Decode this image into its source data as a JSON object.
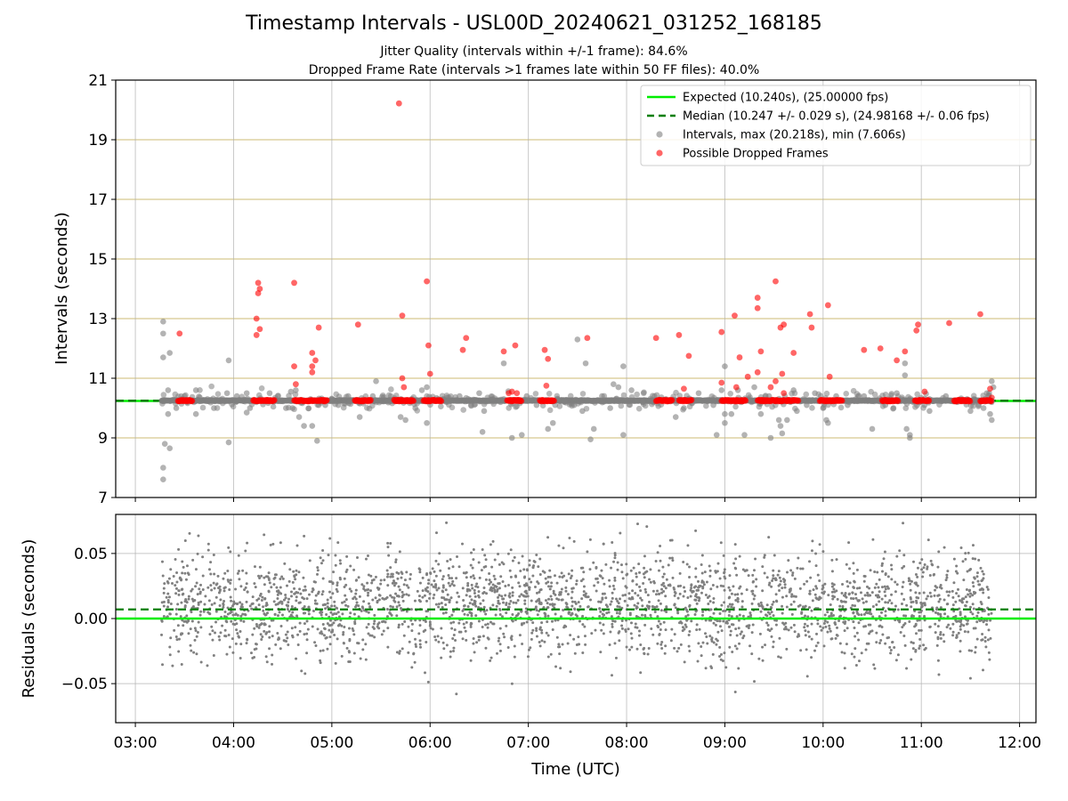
{
  "header": {
    "title": "Timestamp Intervals - USL00D_20240621_031252_168185",
    "subtitle1": "Jitter Quality (intervals within +/-1 frame): 84.6%",
    "subtitle2": "Dropped Frame Rate (intervals >1 frames late within 50 FF files): 40.0%"
  },
  "colors": {
    "expected": "#00ee00",
    "median": "#007f00",
    "intervals": "#808080",
    "dropped": "#ff0000",
    "grid_h_top": "#c8b464",
    "grid": "#b0b0b0"
  },
  "chart_data": [
    {
      "type": "scatter",
      "ylabel": "Intervals (seconds)",
      "xlabel": "",
      "xlim": [
        "02:48",
        "12:10"
      ],
      "ylim": [
        7,
        21
      ],
      "yticks": [
        7,
        9,
        11,
        13,
        15,
        17,
        19,
        21
      ],
      "xticks": [
        "03:00",
        "04:00",
        "05:00",
        "06:00",
        "07:00",
        "08:00",
        "09:00",
        "10:00",
        "11:00",
        "12:00"
      ],
      "grid": true,
      "legend_position": "top-right",
      "legend": [
        "Expected (10.240s), (25.00000 fps)",
        "Median (10.247 +/- 0.029 s), (24.98168 +/- 0.06 fps)",
        "Intervals, max (20.218s), min (7.606s)",
        "Possible Dropped Frames"
      ],
      "expected_line": 10.24,
      "median_line": 10.247,
      "data_time_range": [
        "03:16",
        "11:43"
      ],
      "baseline_interval": 10.25,
      "series": [
        {
          "name": "Intervals, max (20.218s), min (7.606s)",
          "points": [
            [
              "03:17",
              12.9
            ],
            [
              "03:17",
              12.5
            ],
            [
              "03:17",
              11.7
            ],
            [
              "03:21",
              11.85
            ],
            [
              "03:18",
              8.8
            ],
            [
              "03:17",
              8.0
            ],
            [
              "03:17",
              7.606
            ],
            [
              "03:21",
              8.65
            ],
            [
              "03:20",
              9.8
            ],
            [
              "03:20",
              10.6
            ],
            [
              "03:25",
              10.0
            ],
            [
              "03:30",
              10.4
            ],
            [
              "03:37",
              10.6
            ],
            [
              "03:37",
              9.8
            ],
            [
              "03:44",
              10.3
            ],
            [
              "03:48",
              10.0
            ],
            [
              "03:57",
              11.6
            ],
            [
              "03:57",
              8.85
            ],
            [
              "03:56",
              10.5
            ],
            [
              "04:02",
              10.4
            ],
            [
              "04:08",
              10.5
            ],
            [
              "04:08",
              9.85
            ],
            [
              "04:10",
              10.0
            ],
            [
              "04:22",
              10.5
            ],
            [
              "04:27",
              10.4
            ],
            [
              "04:32",
              10.0
            ],
            [
              "04:35",
              10.55
            ],
            [
              "04:36",
              10.0
            ],
            [
              "04:38",
              10.6
            ],
            [
              "04:40",
              9.7
            ],
            [
              "04:42",
              10.2
            ],
            [
              "04:43",
              9.4
            ],
            [
              "04:47",
              10.3
            ],
            [
              "04:48",
              9.4
            ],
            [
              "04:51",
              8.9
            ],
            [
              "04:52",
              10.1
            ],
            [
              "04:56",
              10.1
            ],
            [
              "05:00",
              10.3
            ],
            [
              "05:04",
              10.1
            ],
            [
              "05:10",
              10.4
            ],
            [
              "05:17",
              9.7
            ],
            [
              "05:25",
              10.4
            ],
            [
              "05:27",
              10.9
            ],
            [
              "05:36",
              10.4
            ],
            [
              "05:42",
              9.7
            ],
            [
              "05:45",
              9.6
            ],
            [
              "05:51",
              10.0
            ],
            [
              "05:55",
              10.6
            ],
            [
              "05:58",
              9.5
            ],
            [
              "05:58",
              10.7
            ],
            [
              "06:05",
              10.3
            ],
            [
              "06:10",
              10.2
            ],
            [
              "06:18",
              10.4
            ],
            [
              "06:25",
              10.1
            ],
            [
              "06:30",
              10.5
            ],
            [
              "06:32",
              9.2
            ],
            [
              "06:33",
              9.9
            ],
            [
              "06:38",
              10.3
            ],
            [
              "06:43",
              10.2
            ],
            [
              "06:45",
              10.3
            ],
            [
              "06:45",
              11.5
            ],
            [
              "06:50",
              9.0
            ],
            [
              "06:56",
              9.1
            ],
            [
              "06:59",
              10.4
            ],
            [
              "07:05",
              10.1
            ],
            [
              "07:12",
              9.3
            ],
            [
              "07:15",
              9.5
            ],
            [
              "07:18",
              10.3
            ],
            [
              "07:22",
              10.2
            ],
            [
              "07:28",
              10.1
            ],
            [
              "07:30",
              12.3
            ],
            [
              "07:33",
              9.9
            ],
            [
              "07:35",
              11.5
            ],
            [
              "07:38",
              8.95
            ],
            [
              "07:40",
              9.3
            ],
            [
              "07:45",
              10.4
            ],
            [
              "07:50",
              10.0
            ],
            [
              "07:52",
              10.8
            ],
            [
              "07:55",
              10.7
            ],
            [
              "07:58",
              11.4
            ],
            [
              "07:58",
              9.1
            ],
            [
              "08:03",
              10.6
            ],
            [
              "08:10",
              10.2
            ],
            [
              "08:17",
              10.4
            ],
            [
              "08:24",
              10.3
            ],
            [
              "08:30",
              9.7
            ],
            [
              "08:35",
              10.0
            ],
            [
              "08:38",
              10.3
            ],
            [
              "08:44",
              10.5
            ],
            [
              "08:53",
              10.1
            ],
            [
              "08:55",
              9.1
            ],
            [
              "08:58",
              10.6
            ],
            [
              "09:00",
              11.4
            ],
            [
              "09:00",
              9.8
            ],
            [
              "09:00",
              9.5
            ],
            [
              "09:04",
              9.8
            ],
            [
              "09:08",
              10.6
            ],
            [
              "09:12",
              9.1
            ],
            [
              "09:15",
              10.3
            ],
            [
              "09:18",
              10.7
            ],
            [
              "09:22",
              9.8
            ],
            [
              "09:27",
              10.4
            ],
            [
              "09:28",
              9.0
            ],
            [
              "09:33",
              9.6
            ],
            [
              "09:34",
              9.4
            ],
            [
              "09:35",
              9.15
            ],
            [
              "09:38",
              9.6
            ],
            [
              "09:40",
              10.2
            ],
            [
              "09:42",
              10.6
            ],
            [
              "09:44",
              9.9
            ],
            [
              "09:48",
              10.3
            ],
            [
              "09:50",
              10.1
            ],
            [
              "09:55",
              10.5
            ],
            [
              "10:00",
              10.0
            ],
            [
              "10:02",
              9.6
            ],
            [
              "10:03",
              9.5
            ],
            [
              "10:08",
              10.4
            ],
            [
              "10:15",
              10.1
            ],
            [
              "10:20",
              10.3
            ],
            [
              "10:25",
              10.4
            ],
            [
              "10:30",
              9.3
            ],
            [
              "10:38",
              10.1
            ],
            [
              "10:43",
              10.0
            ],
            [
              "10:45",
              10.5
            ],
            [
              "10:48",
              10.3
            ],
            [
              "10:50",
              11.5
            ],
            [
              "10:50",
              11.1
            ],
            [
              "10:51",
              9.3
            ],
            [
              "10:53",
              9.1
            ],
            [
              "10:53",
              9.0
            ],
            [
              "10:55",
              10.2
            ],
            [
              "11:02",
              10.1
            ],
            [
              "11:05",
              10.3
            ],
            [
              "11:05",
              9.9
            ],
            [
              "11:15",
              10.4
            ],
            [
              "11:22",
              10.2
            ],
            [
              "11:28",
              10.3
            ],
            [
              "11:30",
              9.9
            ],
            [
              "11:35",
              10.1
            ],
            [
              "11:38",
              10.0
            ],
            [
              "11:40",
              10.5
            ],
            [
              "11:43",
              10.9
            ],
            [
              "11:43",
              10.2
            ],
            [
              "11:43",
              9.6
            ],
            [
              "11:42",
              9.8
            ],
            [
              "11:44",
              10.7
            ],
            [
              "11:41",
              10.4
            ]
          ]
        },
        {
          "name": "Possible Dropped Frames",
          "points": [
            [
              "05:41",
              20.218
            ],
            [
              "04:15",
              14.2
            ],
            [
              "04:15",
              13.85
            ],
            [
              "04:16",
              14.0
            ],
            [
              "04:14",
              13.0
            ],
            [
              "04:14",
              12.45
            ],
            [
              "04:16",
              12.65
            ],
            [
              "04:37",
              14.2
            ],
            [
              "04:37",
              11.4
            ],
            [
              "04:38",
              10.8
            ],
            [
              "04:48",
              11.85
            ],
            [
              "04:48",
              11.4
            ],
            [
              "04:48",
              11.2
            ],
            [
              "04:50",
              11.6
            ],
            [
              "04:52",
              12.7
            ],
            [
              "05:16",
              12.8
            ],
            [
              "03:27",
              12.5
            ],
            [
              "05:43",
              13.1
            ],
            [
              "05:43",
              11.0
            ],
            [
              "05:44",
              10.7
            ],
            [
              "05:58",
              14.25
            ],
            [
              "05:59",
              12.1
            ],
            [
              "06:00",
              11.15
            ],
            [
              "06:20",
              11.95
            ],
            [
              "06:22",
              12.35
            ],
            [
              "06:45",
              11.9
            ],
            [
              "06:52",
              12.1
            ],
            [
              "06:48",
              10.5
            ],
            [
              "06:50",
              10.55
            ],
            [
              "06:53",
              10.5
            ],
            [
              "07:10",
              11.95
            ],
            [
              "07:12",
              11.65
            ],
            [
              "07:11",
              10.75
            ],
            [
              "07:36",
              12.35
            ],
            [
              "08:18",
              12.35
            ],
            [
              "08:32",
              12.45
            ],
            [
              "08:35",
              10.65
            ],
            [
              "08:38",
              11.75
            ],
            [
              "08:58",
              12.55
            ],
            [
              "08:58",
              10.85
            ],
            [
              "09:06",
              13.1
            ],
            [
              "09:07",
              10.7
            ],
            [
              "09:09",
              11.7
            ],
            [
              "09:14",
              11.05
            ],
            [
              "09:20",
              13.7
            ],
            [
              "09:20",
              13.35
            ],
            [
              "09:20",
              11.2
            ],
            [
              "09:22",
              11.9
            ],
            [
              "09:28",
              10.7
            ],
            [
              "09:31",
              14.25
            ],
            [
              "09:31",
              10.9
            ],
            [
              "09:34",
              12.7
            ],
            [
              "09:35",
              11.15
            ],
            [
              "09:36",
              12.8
            ],
            [
              "09:36",
              10.5
            ],
            [
              "09:42",
              11.85
            ],
            [
              "09:52",
              13.15
            ],
            [
              "09:53",
              12.7
            ],
            [
              "10:03",
              13.45
            ],
            [
              "10:04",
              11.05
            ],
            [
              "10:25",
              11.95
            ],
            [
              "10:35",
              12.0
            ],
            [
              "10:45",
              11.6
            ],
            [
              "10:50",
              11.9
            ],
            [
              "10:57",
              12.6
            ],
            [
              "10:58",
              12.8
            ],
            [
              "11:02",
              10.55
            ],
            [
              "11:17",
              12.85
            ],
            [
              "11:36",
              13.15
            ],
            [
              "11:42",
              10.65
            ],
            [
              "11:43",
              10.35
            ]
          ]
        }
      ],
      "dropped_clusters": [
        [
          "03:26",
          "03:35"
        ],
        [
          "04:12",
          "04:25"
        ],
        [
          "04:37",
          "04:57"
        ],
        [
          "05:14",
          "05:24"
        ],
        [
          "05:38",
          "05:50"
        ],
        [
          "05:56",
          "06:07"
        ],
        [
          "06:47",
          "06:56"
        ],
        [
          "07:07",
          "07:16"
        ],
        [
          "08:18",
          "08:28"
        ],
        [
          "08:32",
          "08:40"
        ],
        [
          "08:58",
          "09:13"
        ],
        [
          "09:20",
          "09:45"
        ],
        [
          "09:58",
          "10:12"
        ],
        [
          "10:36",
          "10:46"
        ],
        [
          "10:56",
          "11:05"
        ],
        [
          "11:20",
          "11:30"
        ],
        [
          "11:36",
          "11:43"
        ]
      ]
    },
    {
      "type": "scatter",
      "ylabel": "Residuals (seconds)",
      "xlabel": "Time (UTC)",
      "xlim": [
        "02:48",
        "12:10"
      ],
      "ylim": [
        -0.08,
        0.08
      ],
      "yticks": [
        -0.05,
        0.0,
        0.05
      ],
      "ytick_labels": [
        "−0.05",
        "0.00",
        "0.05"
      ],
      "xticks": [
        "03:00",
        "04:00",
        "05:00",
        "06:00",
        "07:00",
        "08:00",
        "09:00",
        "10:00",
        "11:00",
        "12:00"
      ],
      "grid": true,
      "zero_line": 0.0,
      "median_offset": 0.007,
      "residual_range": [
        -0.071,
        0.079
      ],
      "residual_mean": 0.01,
      "residual_sd": 0.02,
      "residual_count": 2800,
      "data_time_range": [
        "03:16",
        "11:43"
      ]
    }
  ]
}
